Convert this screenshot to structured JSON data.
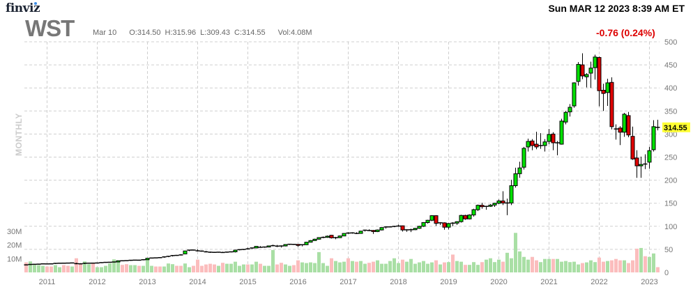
{
  "header": {
    "logo": "finviz",
    "ticker": "WST",
    "datetime": "Sun MAR 12 2023 8:39 AM ET",
    "quote": {
      "date": "Mar 10",
      "open": "O:314.50",
      "high": "H:315.96",
      "low": "L:309.43",
      "close": "C:314.55",
      "volume": "Vol:4.08M"
    },
    "change": "-0.76 (0.24%)",
    "timeframe": "MONTHLY"
  },
  "colors": {
    "up": "#00e000",
    "down": "#e00000",
    "vol_up": "#a9dfa5",
    "vol_down": "#fbbdbd",
    "grid": "#cfcfcf",
    "change": "#dd0000",
    "last_price_bg": "#ffff33"
  },
  "chart_data": {
    "type": "candlestick",
    "interval": "monthly",
    "last_price_label": "314.55",
    "y_ticks": [
      "0",
      "50",
      "100",
      "150",
      "200",
      "250",
      "300",
      "350",
      "400",
      "450",
      "500"
    ],
    "ylim": [
      0,
      500
    ],
    "volume_ticks": [
      "10M",
      "20M",
      "30M"
    ],
    "x_ticks": [
      "2011",
      "2012",
      "2013",
      "2014",
      "2015",
      "2016",
      "2017",
      "2018",
      "2019",
      "2020",
      "2021",
      "2022",
      "2023"
    ],
    "grid": true,
    "columns": [
      "month",
      "open",
      "high",
      "low",
      "close",
      "volume_M"
    ],
    "candles": [
      [
        "2010-08",
        17.0,
        17.5,
        15.8,
        16.3,
        7.3
      ],
      [
        "2010-09",
        16.3,
        17.6,
        16.1,
        17.3,
        8
      ],
      [
        "2010-10",
        17.3,
        18,
        17,
        17.6,
        5.5
      ],
      [
        "2010-11",
        17.6,
        18.3,
        17.2,
        17.9,
        5.3
      ],
      [
        "2010-12",
        17.9,
        18.8,
        17.7,
        18.5,
        4.8
      ],
      [
        "2011-01",
        18.5,
        19,
        18,
        18.4,
        4.3
      ],
      [
        "2011-02",
        18.6,
        19.2,
        18.1,
        18.5,
        4.3
      ],
      [
        "2011-03",
        18.5,
        19.9,
        18.3,
        19.6,
        5.3
      ],
      [
        "2011-04",
        19.6,
        20.3,
        19.3,
        19.9,
        3.8
      ],
      [
        "2011-05",
        20.2,
        20.6,
        19.6,
        20.0,
        5.3
      ],
      [
        "2011-06",
        20.4,
        20.8,
        19.8,
        20.2,
        4.8
      ],
      [
        "2011-07",
        20.2,
        21,
        19.9,
        20.5,
        4.3
      ],
      [
        "2011-08",
        20.8,
        21,
        17.8,
        19.0,
        10.3
      ],
      [
        "2011-09",
        19.3,
        19.8,
        17.8,
        18.6,
        6.7
      ],
      [
        "2011-10",
        18.6,
        20.2,
        18.2,
        19.8,
        8
      ],
      [
        "2011-11",
        19.8,
        20.5,
        19,
        20.0,
        6
      ],
      [
        "2011-12",
        20.3,
        20.6,
        19.5,
        20.1,
        6.5
      ],
      [
        "2012-01",
        20.1,
        20.8,
        19.8,
        20.4,
        3.8
      ],
      [
        "2012-02",
        20.4,
        21.5,
        20.2,
        21.2,
        3.8
      ],
      [
        "2012-03",
        21.2,
        22.2,
        21,
        21.8,
        4.8
      ],
      [
        "2012-04",
        21.8,
        22.5,
        21.4,
        22.0,
        6.5
      ],
      [
        "2012-05",
        22.0,
        23,
        21.5,
        22.6,
        9.5
      ],
      [
        "2012-06",
        22.6,
        25.6,
        22.4,
        25.3,
        8
      ],
      [
        "2012-07",
        25.5,
        26,
        24.6,
        25.2,
        5.5
      ],
      [
        "2012-08",
        25.8,
        26.2,
        25,
        25.5,
        6
      ],
      [
        "2012-09",
        25.5,
        26.8,
        25.2,
        26.3,
        5.3
      ],
      [
        "2012-10",
        26.3,
        27,
        25.8,
        26.6,
        5.3
      ],
      [
        "2012-11",
        26.9,
        27.3,
        26,
        26.5,
        4.8
      ],
      [
        "2012-12",
        26.5,
        27.8,
        26.3,
        27.5,
        4.8
      ],
      [
        "2013-01",
        27.5,
        31,
        27.3,
        30.6,
        9.8
      ],
      [
        "2013-02",
        30.6,
        31.8,
        30.2,
        31.2,
        4.8
      ],
      [
        "2013-03",
        31.8,
        32.3,
        31,
        31.5,
        4.3
      ],
      [
        "2013-04",
        32.3,
        32.8,
        31.4,
        32.0,
        4.3
      ],
      [
        "2013-05",
        32.0,
        34,
        31.8,
        33.6,
        4.3
      ],
      [
        "2013-06",
        33.6,
        35.4,
        33,
        34.8,
        6.5
      ],
      [
        "2013-07",
        34.8,
        37,
        34.5,
        36.5,
        6
      ],
      [
        "2013-08",
        37.2,
        38,
        36,
        36.9,
        4.8
      ],
      [
        "2013-09",
        38.2,
        39.5,
        36.8,
        37.9,
        4.8
      ],
      [
        "2013-10",
        40,
        47,
        39.5,
        46.5,
        6.5
      ],
      [
        "2013-11",
        46.5,
        49,
        46,
        48.3,
        3.8
      ],
      [
        "2013-12",
        48.6,
        49.5,
        47.5,
        48.4,
        4.8
      ],
      [
        "2014-01",
        48.8,
        49.8,
        45.5,
        46.8,
        9.3
      ],
      [
        "2014-02",
        46.8,
        47.5,
        45,
        46.2,
        4.8
      ],
      [
        "2014-03",
        46.0,
        46.8,
        43.5,
        44.6,
        5.8
      ],
      [
        "2014-04",
        44.6,
        45.2,
        42.5,
        43.8,
        6.3
      ],
      [
        "2014-05",
        43.9,
        44.5,
        42.5,
        43.5,
        5.8
      ],
      [
        "2014-06",
        43.5,
        44.6,
        42.8,
        43.8,
        4.8
      ],
      [
        "2014-07",
        44,
        44.8,
        42.4,
        43.2,
        7
      ],
      [
        "2014-08",
        43.2,
        44.8,
        42.6,
        44.0,
        6.3
      ],
      [
        "2014-09",
        44.0,
        45.3,
        43.5,
        44.6,
        6.3
      ],
      [
        "2014-10",
        44.6,
        48.8,
        43.2,
        48.3,
        7.8
      ],
      [
        "2014-11",
        48.3,
        49.8,
        47.8,
        49.3,
        4.8
      ],
      [
        "2014-12",
        49.3,
        50.6,
        48.5,
        49.8,
        5.8
      ],
      [
        "2015-01",
        52.5,
        53.5,
        49.5,
        51.0,
        5.8
      ],
      [
        "2015-02",
        51,
        53.5,
        50.5,
        53.0,
        5.8
      ],
      [
        "2015-03",
        53,
        57,
        52.5,
        56.5,
        7.8
      ],
      [
        "2015-04",
        56.5,
        57,
        53.5,
        54.5,
        6.3
      ],
      [
        "2015-05",
        54.5,
        56,
        53.5,
        55.0,
        4.8
      ],
      [
        "2015-06",
        55,
        58,
        54.5,
        57.5,
        4.8
      ],
      [
        "2015-07",
        57.5,
        60,
        56.5,
        58.0,
        16.3
      ],
      [
        "2015-08",
        58.5,
        59.5,
        55,
        57.0,
        5.8
      ],
      [
        "2015-09",
        57.5,
        58.5,
        54,
        57.3,
        7
      ],
      [
        "2015-10",
        57.3,
        61,
        56.5,
        60.5,
        5.8
      ],
      [
        "2015-11",
        60.5,
        62,
        59.5,
        61.0,
        4.8
      ],
      [
        "2015-12",
        61.3,
        62,
        59.5,
        60.8,
        5.3
      ],
      [
        "2016-01",
        60.8,
        61.2,
        55.5,
        58.5,
        8.8
      ],
      [
        "2016-02",
        58.5,
        61,
        56.5,
        60.0,
        7.3
      ],
      [
        "2016-03",
        60,
        66,
        59.5,
        65.5,
        6.8
      ],
      [
        "2016-04",
        65.5,
        70,
        65,
        69.0,
        7.3
      ],
      [
        "2016-05",
        69,
        73,
        68.5,
        72.0,
        6.8
      ],
      [
        "2016-06",
        72,
        76,
        71,
        75.5,
        14.8
      ],
      [
        "2016-07",
        75.5,
        78,
        74,
        76.0,
        6.8
      ],
      [
        "2016-08",
        76,
        80,
        75,
        78.5,
        4.8
      ],
      [
        "2016-09",
        80.5,
        81,
        73.5,
        75.0,
        10.3
      ],
      [
        "2016-10",
        75,
        77,
        72,
        75.3,
        8.3
      ],
      [
        "2016-11",
        75.3,
        80,
        74.5,
        79.0,
        7.3
      ],
      [
        "2016-12",
        79,
        85,
        78.5,
        84.5,
        7.8
      ],
      [
        "2017-01",
        86,
        87,
        83.5,
        85.3,
        10.3
      ],
      [
        "2017-02",
        85.3,
        87,
        84,
        85.6,
        8.3
      ],
      [
        "2017-03",
        86,
        87,
        83,
        84.5,
        7.8
      ],
      [
        "2017-04",
        84.5,
        90,
        84,
        89.5,
        8.3
      ],
      [
        "2017-05",
        89.5,
        92.5,
        88.5,
        91.5,
        6.3
      ],
      [
        "2017-06",
        92,
        93.5,
        89.5,
        90.8,
        7
      ],
      [
        "2017-07",
        91,
        92,
        83.5,
        88.5,
        7.8
      ],
      [
        "2017-08",
        88.5,
        93,
        87.5,
        92.0,
        8.8
      ],
      [
        "2017-09",
        92,
        97.8,
        91,
        97.2,
        6.3
      ],
      [
        "2017-10",
        97.2,
        99.8,
        95,
        98.5,
        6.3
      ],
      [
        "2017-11",
        98.5,
        100,
        97.5,
        98.7,
        8.3
      ],
      [
        "2017-12",
        98.7,
        101,
        98,
        99.8,
        10.3
      ],
      [
        "2018-01",
        99.8,
        103.5,
        99,
        100.5,
        6.8
      ],
      [
        "2018-02",
        101,
        101.5,
        88.5,
        92,
        9.3
      ],
      [
        "2018-03",
        92,
        93.5,
        88,
        92.3,
        7.8
      ],
      [
        "2018-04",
        91.5,
        95,
        87.5,
        92.5,
        9.8
      ],
      [
        "2018-05",
        92.5,
        96.5,
        91.5,
        95.5,
        6.3
      ],
      [
        "2018-06",
        95.5,
        101,
        94.5,
        100,
        7.3
      ],
      [
        "2018-07",
        100,
        109,
        98.5,
        108,
        8.3
      ],
      [
        "2018-08",
        108,
        114,
        106,
        113,
        6.3
      ],
      [
        "2018-09",
        113,
        124,
        111,
        123,
        7.3
      ],
      [
        "2018-10",
        123,
        124,
        101,
        106.5,
        8.8
      ],
      [
        "2018-11",
        106.5,
        109,
        103,
        107.5,
        5.8
      ],
      [
        "2018-12",
        107.5,
        108.5,
        92.5,
        98,
        7.3
      ],
      [
        "2019-01",
        98,
        107,
        93,
        106,
        7.5
      ],
      [
        "2019-02",
        107.5,
        109,
        100,
        106.8,
        13
      ],
      [
        "2019-03",
        106.8,
        111,
        103,
        110,
        8.3
      ],
      [
        "2019-04",
        110,
        125,
        108,
        123.5,
        7.8
      ],
      [
        "2019-05",
        123.5,
        125,
        114,
        116,
        5.5
      ],
      [
        "2019-06",
        116,
        126,
        115,
        124.5,
        5.5
      ],
      [
        "2019-07",
        124.5,
        138,
        121,
        136,
        7.5
      ],
      [
        "2019-08",
        136,
        147,
        133,
        145.5,
        5.5
      ],
      [
        "2019-09",
        145.5,
        151,
        138,
        142.5,
        7.5
      ],
      [
        "2019-10",
        142.5,
        144,
        136,
        143.2,
        9.3
      ],
      [
        "2019-11",
        143.2,
        148,
        142,
        146,
        10.3
      ],
      [
        "2019-12",
        146,
        151,
        142,
        150,
        7.5
      ],
      [
        "2020-01",
        150,
        158,
        148,
        155,
        9.3
      ],
      [
        "2020-02",
        155,
        176,
        146,
        150.5,
        7.8
      ],
      [
        "2020-03",
        150,
        160,
        124,
        150.5,
        14.3
      ],
      [
        "2020-04",
        150.5,
        201,
        146,
        188,
        10.3
      ],
      [
        "2020-05",
        188,
        227,
        184,
        214,
        28.8
      ],
      [
        "2020-06",
        214,
        240,
        205,
        226.5,
        15.3
      ],
      [
        "2020-07",
        228,
        272,
        223,
        269,
        11.3
      ],
      [
        "2020-08",
        272,
        290,
        262,
        284,
        9.3
      ],
      [
        "2020-09",
        285,
        289,
        265,
        275,
        11.3
      ],
      [
        "2020-10",
        278,
        305,
        267,
        272,
        8.8
      ],
      [
        "2020-11",
        274,
        302,
        268,
        275,
        7.5
      ],
      [
        "2020-12",
        275,
        289,
        262,
        283,
        9.8
      ],
      [
        "2021-01",
        284,
        311,
        278,
        299,
        9.8
      ],
      [
        "2021-02",
        300,
        304,
        265,
        281,
        9.8
      ],
      [
        "2021-03",
        280,
        285,
        254,
        281,
        9.8
      ],
      [
        "2021-04",
        278,
        333,
        277,
        328,
        7.8
      ],
      [
        "2021-05",
        326,
        350,
        321,
        347,
        8.3
      ],
      [
        "2021-06",
        348,
        365,
        338,
        358,
        7.5
      ],
      [
        "2021-07",
        361,
        412,
        357,
        411,
        7.8
      ],
      [
        "2021-08",
        414,
        456,
        405,
        451,
        5.8
      ],
      [
        "2021-09",
        450,
        475,
        419,
        426,
        6.8
      ],
      [
        "2021-10",
        424,
        432,
        401,
        429,
        7.3
      ],
      [
        "2021-11",
        432,
        457,
        400,
        443,
        8.8
      ],
      [
        "2021-12",
        444,
        472,
        418,
        467,
        7.5
      ],
      [
        "2022-01",
        466,
        468,
        360,
        394,
        10.8
      ],
      [
        "2022-02",
        395,
        409,
        350,
        388,
        7.8
      ],
      [
        "2022-03",
        390,
        420,
        361,
        411,
        8.3
      ],
      [
        "2022-04",
        412,
        423,
        310,
        316,
        8.8
      ],
      [
        "2022-05",
        312,
        321,
        288,
        311,
        9.8
      ],
      [
        "2022-06",
        313,
        317,
        276,
        304,
        8.8
      ],
      [
        "2022-07",
        304,
        346,
        294,
        343,
        8.8
      ],
      [
        "2022-08",
        340,
        348,
        293,
        298,
        6.8
      ],
      [
        "2022-09",
        295,
        316,
        244,
        246,
        8.8
      ],
      [
        "2022-10",
        248,
        265,
        205,
        231,
        17.3
      ],
      [
        "2022-11",
        231,
        251,
        205,
        234,
        17.8
      ],
      [
        "2022-12",
        235.5,
        256,
        224,
        235,
        11.8
      ],
      [
        "2023-01",
        239,
        272,
        225,
        264,
        11.3
      ],
      [
        "2023-02",
        266,
        330,
        262,
        316,
        13.8
      ],
      [
        "2023-03",
        316,
        331,
        308,
        314.55,
        3.8
      ]
    ]
  }
}
